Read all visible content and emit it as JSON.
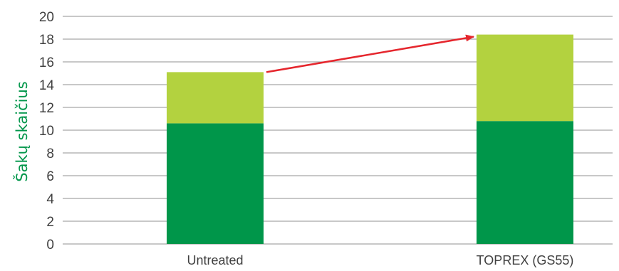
{
  "chart_data": {
    "type": "bar",
    "stacked": true,
    "categories": [
      "Untreated",
      "TOPREX (GS55)"
    ],
    "series": [
      {
        "values": [
          10.6,
          10.8
        ],
        "color": "#00964a"
      },
      {
        "values": [
          4.5,
          7.6
        ],
        "color": "#b3d23f"
      }
    ],
    "title": "",
    "xlabel": "",
    "ylabel": "Šakų skaičius",
    "ylim": [
      0,
      20
    ],
    "yticks": [
      0,
      2,
      4,
      6,
      8,
      10,
      12,
      14,
      16,
      18,
      20
    ],
    "grid": true,
    "legend": "none",
    "annotation": {
      "type": "arrow",
      "from": "Untreated top",
      "to": "TOPREX (GS55) top",
      "color": "#e5262d"
    },
    "colors": {
      "grid": "#a6a6a6",
      "axis_title": "#00964a",
      "text": "#404040"
    }
  }
}
